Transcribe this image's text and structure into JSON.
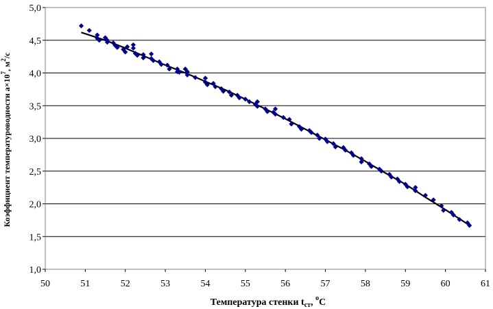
{
  "chart_data": {
    "type": "scatter",
    "xlabel": {
      "main": "Температура стенки t",
      "sub": "ст",
      "sep": ", ",
      "sup": "o",
      "unit": "C"
    },
    "ylabel": {
      "main": "Коэффициент температуроводности a×10",
      "sup": "7",
      "sep": ", м",
      "sup2": "2",
      "unit": "/с"
    },
    "xlim": [
      50,
      61
    ],
    "ylim": [
      1.0,
      5.0
    ],
    "x_ticks": [
      "50",
      "51",
      "52",
      "53",
      "54",
      "55",
      "56",
      "57",
      "58",
      "59",
      "60",
      "61"
    ],
    "y_ticks": [
      "1,0",
      "1,5",
      "2,0",
      "2,5",
      "3,0",
      "3,5",
      "4,0",
      "4,5",
      "5,0"
    ],
    "grid": {
      "horizontal": true,
      "vertical": false
    },
    "legend": "none",
    "series": [
      {
        "kind": "points",
        "color": "#00008b",
        "marker": "diamond",
        "x": [
          50.9,
          51.1,
          51.3,
          51.3,
          51.35,
          51.5,
          51.55,
          51.55,
          51.7,
          51.75,
          51.8,
          51.95,
          52.0,
          52.05,
          52.2,
          52.2,
          52.25,
          52.3,
          52.45,
          52.45,
          52.65,
          52.65,
          52.7,
          52.85,
          52.9,
          53.05,
          53.1,
          53.3,
          53.3,
          53.35,
          53.5,
          53.55,
          53.55,
          53.75,
          54.0,
          54.0,
          54.05,
          54.2,
          54.25,
          54.4,
          54.45,
          54.6,
          54.65,
          54.8,
          54.85,
          55.0,
          55.1,
          55.25,
          55.3,
          55.3,
          55.5,
          55.55,
          55.7,
          55.75,
          55.75,
          55.95,
          56.1,
          56.15,
          56.35,
          56.4,
          56.6,
          56.65,
          56.8,
          56.85,
          57.0,
          57.05,
          57.2,
          57.25,
          57.45,
          57.5,
          57.65,
          57.7,
          57.9,
          57.9,
          58.1,
          58.15,
          58.35,
          58.4,
          58.6,
          58.65,
          58.8,
          58.85,
          59.0,
          59.05,
          59.25,
          59.25,
          59.5,
          59.7,
          59.9,
          59.95,
          60.15,
          60.2,
          60.35,
          60.55,
          60.6
        ],
        "y": [
          4.72,
          4.65,
          4.58,
          4.53,
          4.5,
          4.54,
          4.5,
          4.47,
          4.46,
          4.42,
          4.39,
          4.36,
          4.32,
          4.4,
          4.43,
          4.38,
          4.3,
          4.27,
          4.28,
          4.23,
          4.29,
          4.22,
          4.19,
          4.17,
          4.13,
          4.12,
          4.06,
          4.06,
          4.02,
          4.01,
          4.06,
          4.02,
          3.97,
          3.93,
          3.92,
          3.86,
          3.82,
          3.84,
          3.79,
          3.76,
          3.72,
          3.71,
          3.66,
          3.66,
          3.62,
          3.6,
          3.56,
          3.52,
          3.56,
          3.49,
          3.45,
          3.41,
          3.4,
          3.45,
          3.37,
          3.32,
          3.29,
          3.22,
          3.18,
          3.14,
          3.12,
          3.09,
          3.05,
          3.0,
          2.99,
          2.95,
          2.92,
          2.87,
          2.86,
          2.82,
          2.78,
          2.74,
          2.69,
          2.64,
          2.61,
          2.57,
          2.53,
          2.5,
          2.45,
          2.41,
          2.38,
          2.34,
          2.3,
          2.26,
          2.25,
          2.2,
          2.13,
          2.06,
          1.97,
          1.9,
          1.87,
          1.83,
          1.76,
          1.71,
          1.67
        ]
      },
      {
        "kind": "trendline",
        "color": "#000000",
        "x": [
          50.9,
          51.5,
          52.0,
          52.5,
          53.0,
          53.5,
          54.0,
          54.5,
          55.0,
          55.5,
          56.0,
          56.5,
          57.0,
          57.5,
          58.0,
          58.5,
          59.0,
          59.5,
          60.0,
          60.58
        ],
        "y": [
          4.62,
          4.5,
          4.38,
          4.25,
          4.12,
          4.0,
          3.87,
          3.74,
          3.6,
          3.45,
          3.3,
          3.14,
          2.98,
          2.82,
          2.65,
          2.47,
          2.3,
          2.1,
          1.91,
          1.68
        ]
      }
    ]
  }
}
